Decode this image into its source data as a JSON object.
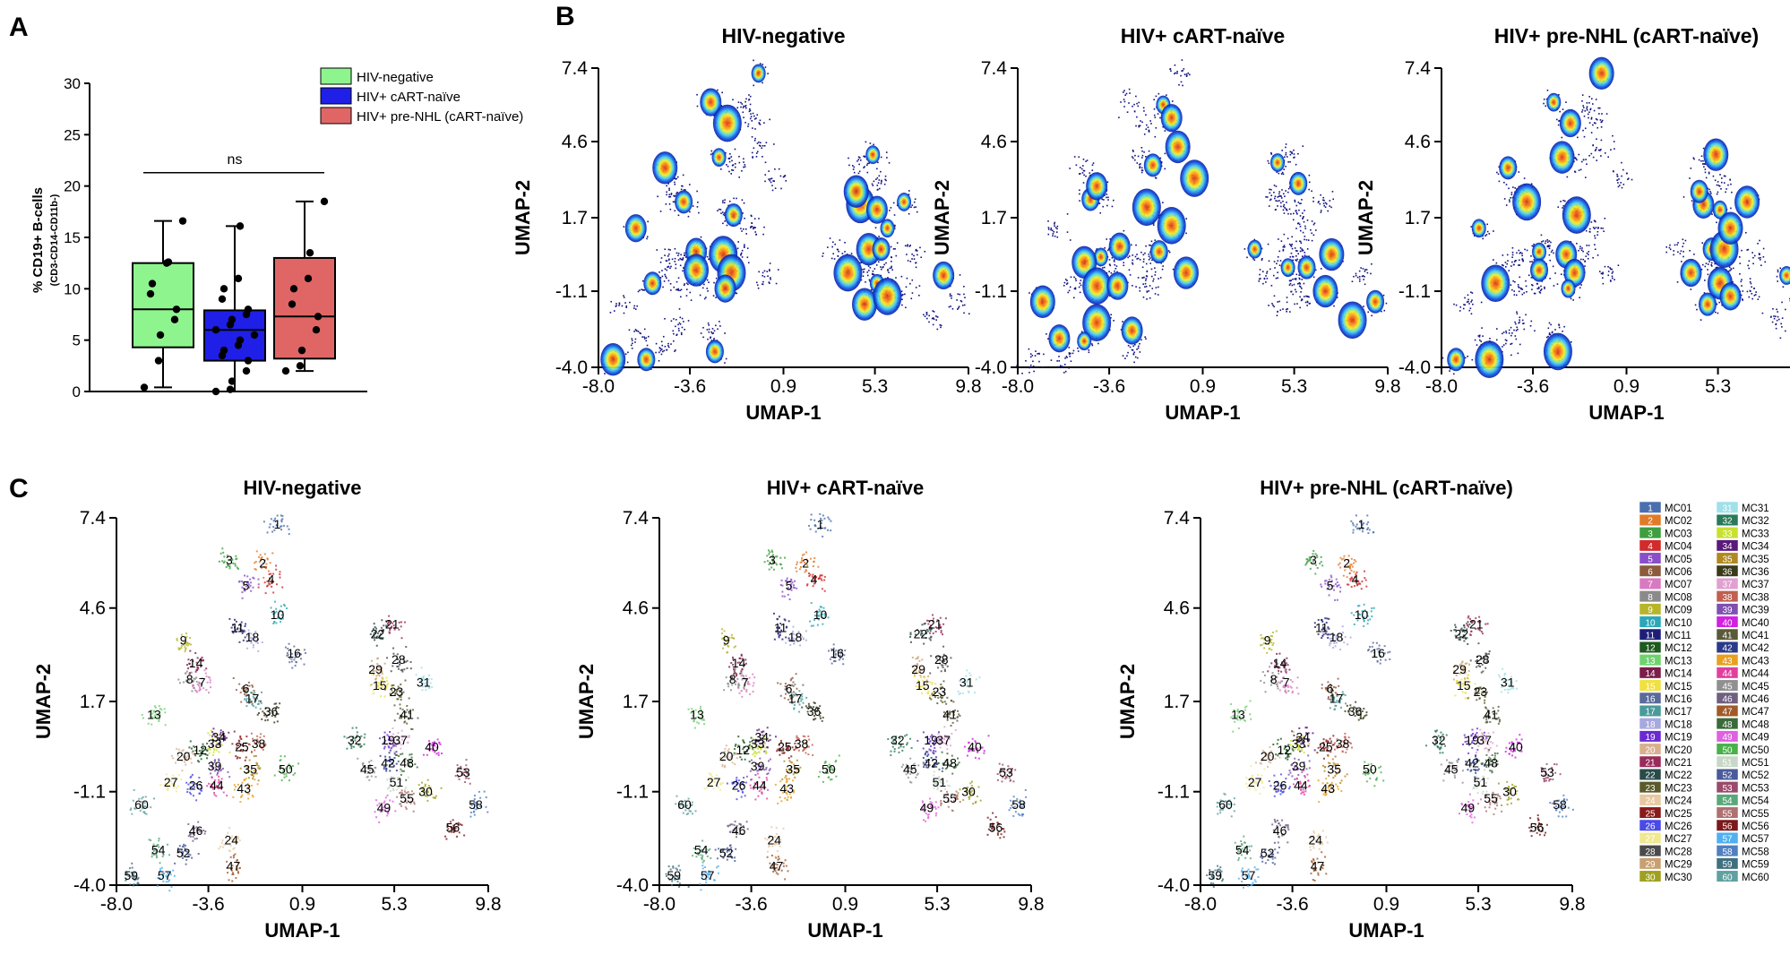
{
  "panel_labels": {
    "a": "A",
    "b": "B",
    "c": "C"
  },
  "chart_data": [
    {
      "id": "A",
      "type": "box",
      "ylabel_main": "% CD19+ B-cells",
      "ylabel_sub": "(CD3-CD14-CD11b-)",
      "ylim": [
        0,
        30
      ],
      "yticks": [
        "0",
        "5",
        "10",
        "15",
        "20",
        "25",
        "30"
      ],
      "annotation": "ns",
      "legend": [
        {
          "name": "HIV-negative",
          "color": "#8ef58e"
        },
        {
          "name": "HIV+ cART-naïve",
          "color": "#1f1fe8"
        },
        {
          "name": "HIV+ pre-NHL (cART-naïve)",
          "color": "#e06666"
        }
      ],
      "series": [
        {
          "name": "HIV-negative",
          "color": "#8ef58e",
          "min": 0.4,
          "q1": 4.3,
          "median": 8.0,
          "q3": 12.5,
          "max": 16.6,
          "points": [
            0.4,
            3.0,
            5.5,
            7.0,
            8.0,
            9.5,
            10.5,
            12.5,
            12.6,
            16.6
          ]
        },
        {
          "name": "HIV+ cART-naïve",
          "color": "#1f1fe8",
          "min": 0.0,
          "q1": 3.0,
          "median": 6.0,
          "q3": 7.9,
          "max": 16.1,
          "points": [
            0.0,
            0.2,
            1.0,
            2.0,
            3.0,
            3.5,
            4.0,
            4.5,
            5.0,
            5.5,
            6.0,
            6.5,
            7.0,
            7.5,
            8.0,
            9.0,
            10.0,
            11.0,
            16.1
          ]
        },
        {
          "name": "HIV+ pre-NHL (cART-naïve)",
          "color": "#e06666",
          "min": 2.0,
          "q1": 3.2,
          "median": 7.3,
          "q3": 13.0,
          "max": 18.5,
          "points": [
            2.0,
            2.5,
            4.0,
            6.0,
            7.3,
            8.5,
            10.0,
            11.0,
            13.5,
            18.5
          ]
        }
      ]
    },
    {
      "id": "B",
      "type": "density-heatmap",
      "xlabel": "UMAP-1",
      "ylabel": "UMAP-2",
      "xlim": [
        -8.0,
        9.8
      ],
      "ylim": [
        -4.0,
        7.4
      ],
      "xticks": [
        "-8.0",
        "-3.6",
        "0.9",
        "5.3",
        "9.8"
      ],
      "yticks": [
        "7.4",
        "4.6",
        "1.7",
        "-1.1",
        "-4.0"
      ],
      "panels": [
        "HIV-negative",
        "HIV+ cART-naïve",
        "HIV+ pre-NHL (cART-naïve)"
      ]
    },
    {
      "id": "C",
      "type": "scatter",
      "xlabel": "UMAP-1",
      "ylabel": "UMAP-2",
      "xlim": [
        -8.0,
        9.8
      ],
      "ylim": [
        -4.0,
        7.4
      ],
      "xticks": [
        "-8.0",
        "-3.6",
        "0.9",
        "5.3",
        "9.8"
      ],
      "yticks": [
        "7.4",
        "4.6",
        "1.7",
        "-1.1",
        "-4.0"
      ],
      "panels": [
        "HIV-negative",
        "HIV+ cART-naïve",
        "HIV+ pre-NHL (cART-naïve)"
      ],
      "clusters": [
        {
          "n": "1",
          "x": -0.3,
          "y": 7.2
        },
        {
          "n": "2",
          "x": -1.0,
          "y": 6.0
        },
        {
          "n": "3",
          "x": -2.6,
          "y": 6.1
        },
        {
          "n": "4",
          "x": -0.6,
          "y": 5.5
        },
        {
          "n": "5",
          "x": -1.8,
          "y": 5.3
        },
        {
          "n": "6",
          "x": -1.8,
          "y": 2.1
        },
        {
          "n": "7",
          "x": -3.9,
          "y": 2.3
        },
        {
          "n": "8",
          "x": -4.5,
          "y": 2.4
        },
        {
          "n": "9",
          "x": -4.8,
          "y": 3.6
        },
        {
          "n": "10",
          "x": -0.3,
          "y": 4.4
        },
        {
          "n": "11",
          "x": -2.2,
          "y": 4.0
        },
        {
          "n": "12",
          "x": -4.0,
          "y": 0.2
        },
        {
          "n": "13",
          "x": -6.2,
          "y": 1.3
        },
        {
          "n": "14",
          "x": -4.2,
          "y": 2.9
        },
        {
          "n": "15",
          "x": 4.6,
          "y": 2.2
        },
        {
          "n": "16",
          "x": 0.5,
          "y": 3.2
        },
        {
          "n": "17",
          "x": -1.5,
          "y": 1.8
        },
        {
          "n": "18",
          "x": -1.5,
          "y": 3.7
        },
        {
          "n": "19",
          "x": 5.0,
          "y": 0.5
        },
        {
          "n": "20",
          "x": -4.8,
          "y": 0.0
        },
        {
          "n": "21",
          "x": 5.2,
          "y": 4.1
        },
        {
          "n": "22",
          "x": 4.5,
          "y": 3.8
        },
        {
          "n": "23",
          "x": 5.4,
          "y": 2.0
        },
        {
          "n": "24",
          "x": -2.5,
          "y": -2.6
        },
        {
          "n": "25",
          "x": -2.0,
          "y": 0.3
        },
        {
          "n": "26",
          "x": -4.2,
          "y": -0.9
        },
        {
          "n": "27",
          "x": -5.4,
          "y": -0.8
        },
        {
          "n": "28",
          "x": 5.5,
          "y": 3.0
        },
        {
          "n": "29",
          "x": 4.4,
          "y": 2.7
        },
        {
          "n": "30",
          "x": 6.8,
          "y": -1.1
        },
        {
          "n": "31",
          "x": 6.7,
          "y": 2.3
        },
        {
          "n": "32",
          "x": 3.4,
          "y": 0.5
        },
        {
          "n": "33",
          "x": -3.3,
          "y": 0.4
        },
        {
          "n": "34",
          "x": -3.1,
          "y": 0.6
        },
        {
          "n": "35",
          "x": -1.6,
          "y": -0.4
        },
        {
          "n": "36",
          "x": -0.6,
          "y": 1.4
        },
        {
          "n": "37",
          "x": 5.6,
          "y": 0.5
        },
        {
          "n": "38",
          "x": -1.2,
          "y": 0.4
        },
        {
          "n": "39",
          "x": -3.3,
          "y": -0.3
        },
        {
          "n": "40",
          "x": 7.1,
          "y": 0.3
        },
        {
          "n": "41",
          "x": 5.9,
          "y": 1.3
        },
        {
          "n": "42",
          "x": 5.0,
          "y": -0.2
        },
        {
          "n": "43",
          "x": -1.9,
          "y": -1.0
        },
        {
          "n": "44",
          "x": -3.2,
          "y": -0.9
        },
        {
          "n": "45",
          "x": 4.0,
          "y": -0.4
        },
        {
          "n": "46",
          "x": -4.2,
          "y": -2.3
        },
        {
          "n": "47",
          "x": -2.4,
          "y": -3.4
        },
        {
          "n": "48",
          "x": 5.9,
          "y": -0.2
        },
        {
          "n": "49",
          "x": 4.8,
          "y": -1.6
        },
        {
          "n": "50",
          "x": 0.1,
          "y": -0.4
        },
        {
          "n": "51",
          "x": 5.4,
          "y": -0.8
        },
        {
          "n": "52",
          "x": -4.8,
          "y": -3.0
        },
        {
          "n": "53",
          "x": 8.6,
          "y": -0.5
        },
        {
          "n": "54",
          "x": -6.0,
          "y": -2.9
        },
        {
          "n": "55",
          "x": 5.9,
          "y": -1.3
        },
        {
          "n": "56",
          "x": 8.1,
          "y": -2.2
        },
        {
          "n": "57",
          "x": -5.7,
          "y": -3.7
        },
        {
          "n": "58",
          "x": 9.2,
          "y": -1.5
        },
        {
          "n": "59",
          "x": -7.3,
          "y": -3.7
        },
        {
          "n": "60",
          "x": -6.8,
          "y": -1.5
        }
      ],
      "legend": [
        {
          "n": "1",
          "label": "MC01",
          "color": "#4a6fae"
        },
        {
          "n": "2",
          "label": "MC02",
          "color": "#e07b2a"
        },
        {
          "n": "3",
          "label": "MC03",
          "color": "#3f9e3f"
        },
        {
          "n": "4",
          "label": "MC04",
          "color": "#d12b2b"
        },
        {
          "n": "5",
          "label": "MC05",
          "color": "#8a4fc8"
        },
        {
          "n": "6",
          "label": "MC06",
          "color": "#8c5a3c"
        },
        {
          "n": "7",
          "label": "MC07",
          "color": "#d87ac0"
        },
        {
          "n": "8",
          "label": "MC08",
          "color": "#8a8a8a"
        },
        {
          "n": "9",
          "label": "MC09",
          "color": "#b7b52a"
        },
        {
          "n": "10",
          "label": "MC10",
          "color": "#2aa8b8"
        },
        {
          "n": "11",
          "label": "MC11",
          "color": "#1e1e78"
        },
        {
          "n": "12",
          "label": "MC12",
          "color": "#1e5a1e"
        },
        {
          "n": "13",
          "label": "MC13",
          "color": "#6fd26f"
        },
        {
          "n": "14",
          "label": "MC14",
          "color": "#7a1e4a"
        },
        {
          "n": "15",
          "label": "MC15",
          "color": "#f0e040"
        },
        {
          "n": "16",
          "label": "MC16",
          "color": "#5a6a9a"
        },
        {
          "n": "17",
          "label": "MC17",
          "color": "#4a9a9a"
        },
        {
          "n": "18",
          "label": "MC18",
          "color": "#a8a8e0"
        },
        {
          "n": "19",
          "label": "MC19",
          "color": "#6a2ad0"
        },
        {
          "n": "20",
          "label": "MC20",
          "color": "#d8b090"
        },
        {
          "n": "21",
          "label": "MC21",
          "color": "#9a2a5a"
        },
        {
          "n": "22",
          "label": "MC22",
          "color": "#2a4a4a"
        },
        {
          "n": "23",
          "label": "MC23",
          "color": "#5a5a2a"
        },
        {
          "n": "24",
          "label": "MC24",
          "color": "#e8c8a0"
        },
        {
          "n": "25",
          "label": "MC25",
          "color": "#8a1a1a"
        },
        {
          "n": "26",
          "label": "MC26",
          "color": "#4a4ae8"
        },
        {
          "n": "27",
          "label": "MC27",
          "color": "#f0e890"
        },
        {
          "n": "28",
          "label": "MC28",
          "color": "#4a4a4a"
        },
        {
          "n": "29",
          "label": "MC29",
          "color": "#c8a070"
        },
        {
          "n": "30",
          "label": "MC30",
          "color": "#a0a020"
        },
        {
          "n": "31",
          "label": "MC31",
          "color": "#a0e0e8"
        },
        {
          "n": "32",
          "label": "MC32",
          "color": "#2a7a5a"
        },
        {
          "n": "33",
          "label": "MC33",
          "color": "#c8e030"
        },
        {
          "n": "34",
          "label": "MC34",
          "color": "#5a1a7a"
        },
        {
          "n": "35",
          "label": "MC35",
          "color": "#b08a20"
        },
        {
          "n": "36",
          "label": "MC36",
          "color": "#3a3a1a"
        },
        {
          "n": "37",
          "label": "MC37",
          "color": "#e0a0d0"
        },
        {
          "n": "38",
          "label": "MC38",
          "color": "#c06050"
        },
        {
          "n": "39",
          "label": "MC39",
          "color": "#8050b0"
        },
        {
          "n": "40",
          "label": "MC40",
          "color": "#d020e0"
        },
        {
          "n": "41",
          "label": "MC41",
          "color": "#5a5a3a"
        },
        {
          "n": "42",
          "label": "MC42",
          "color": "#2a3a8a"
        },
        {
          "n": "43",
          "label": "MC43",
          "color": "#e8a020"
        },
        {
          "n": "44",
          "label": "MC44",
          "color": "#e040a0"
        },
        {
          "n": "45",
          "label": "MC45",
          "color": "#909090"
        },
        {
          "n": "46",
          "label": "MC46",
          "color": "#706080"
        },
        {
          "n": "47",
          "label": "MC47",
          "color": "#a05a2a"
        },
        {
          "n": "48",
          "label": "MC48",
          "color": "#3a6a3a"
        },
        {
          "n": "49",
          "label": "MC49",
          "color": "#e060e0"
        },
        {
          "n": "50",
          "label": "MC50",
          "color": "#4ab04a"
        },
        {
          "n": "51",
          "label": "MC51",
          "color": "#c8d8c8"
        },
        {
          "n": "52",
          "label": "MC52",
          "color": "#4a5a9a"
        },
        {
          "n": "53",
          "label": "MC53",
          "color": "#9a4a6a"
        },
        {
          "n": "54",
          "label": "MC54",
          "color": "#5aa87a"
        },
        {
          "n": "55",
          "label": "MC55",
          "color": "#b07070"
        },
        {
          "n": "56",
          "label": "MC56",
          "color": "#7a1a1a"
        },
        {
          "n": "57",
          "label": "MC57",
          "color": "#50b0f0"
        },
        {
          "n": "58",
          "label": "MC58",
          "color": "#5080c0"
        },
        {
          "n": "59",
          "label": "MC59",
          "color": "#407080"
        },
        {
          "n": "60",
          "label": "MC60",
          "color": "#60a0a0"
        }
      ]
    }
  ]
}
